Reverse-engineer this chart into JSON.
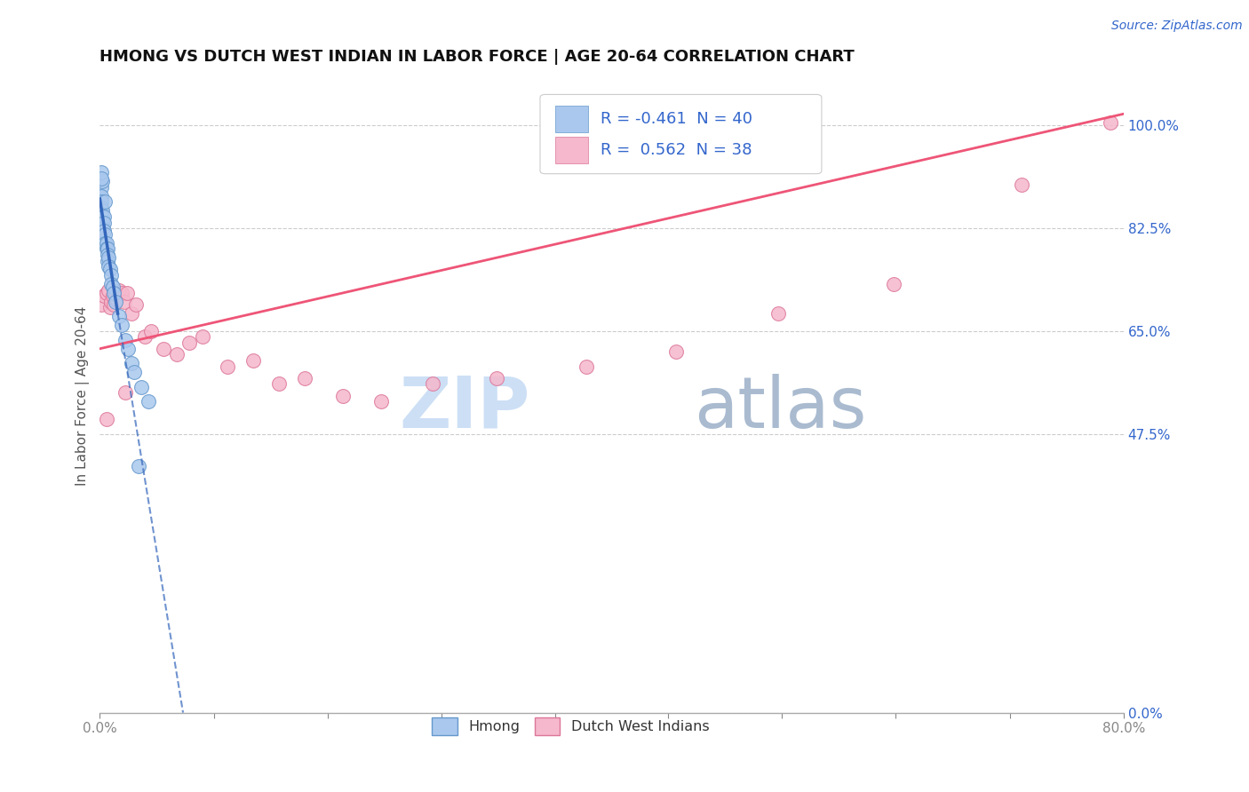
{
  "title": "HMONG VS DUTCH WEST INDIAN IN LABOR FORCE | AGE 20-64 CORRELATION CHART",
  "source_text": "Source: ZipAtlas.com",
  "ylabel": "In Labor Force | Age 20-64",
  "xlim": [
    0.0,
    0.8
  ],
  "ylim": [
    0.0,
    1.08
  ],
  "xtick_labels": [
    "0.0%",
    "",
    "",
    "",
    "",
    "",
    "",
    "",
    "",
    "80.0%"
  ],
  "xtick_positions": [
    0.0,
    0.089,
    0.178,
    0.267,
    0.356,
    0.444,
    0.533,
    0.622,
    0.711,
    0.8
  ],
  "ytick_labels": [
    "0.0%",
    "47.5%",
    "65.0%",
    "82.5%",
    "100.0%"
  ],
  "ytick_positions": [
    0.0,
    0.475,
    0.65,
    0.825,
    1.0
  ],
  "grid_color": "#cccccc",
  "background_color": "#ffffff",
  "hmong_color": "#aac8ee",
  "dutch_color": "#f5b8cc",
  "hmong_edge_color": "#6699cc",
  "dutch_edge_color": "#dd7799",
  "hmong_line_color": "#3366bb",
  "dutch_line_color": "#ee5577",
  "legend_R_hmong": "-0.461",
  "legend_N_hmong": "40",
  "legend_R_dutch": "0.562",
  "legend_N_dutch": "38",
  "hmong_x": [
    0.001,
    0.001,
    0.001,
    0.001,
    0.001,
    0.002,
    0.002,
    0.002,
    0.002,
    0.003,
    0.003,
    0.003,
    0.004,
    0.004,
    0.005,
    0.005,
    0.006,
    0.006,
    0.006,
    0.007,
    0.007,
    0.008,
    0.009,
    0.009,
    0.01,
    0.011,
    0.012,
    0.015,
    0.017,
    0.02,
    0.022,
    0.025,
    0.027,
    0.032,
    0.038,
    0.002,
    0.001,
    0.001,
    0.03,
    0.004
  ],
  "hmong_y": [
    0.895,
    0.88,
    0.87,
    0.86,
    0.85,
    0.855,
    0.845,
    0.835,
    0.825,
    0.845,
    0.835,
    0.82,
    0.815,
    0.8,
    0.8,
    0.79,
    0.79,
    0.78,
    0.77,
    0.775,
    0.76,
    0.755,
    0.745,
    0.73,
    0.725,
    0.715,
    0.7,
    0.675,
    0.66,
    0.635,
    0.62,
    0.595,
    0.58,
    0.555,
    0.53,
    0.905,
    0.92,
    0.91,
    0.42,
    0.87
  ],
  "dutch_x": [
    0.001,
    0.003,
    0.005,
    0.007,
    0.008,
    0.009,
    0.01,
    0.011,
    0.012,
    0.013,
    0.015,
    0.017,
    0.019,
    0.021,
    0.025,
    0.028,
    0.035,
    0.04,
    0.05,
    0.06,
    0.07,
    0.08,
    0.1,
    0.12,
    0.14,
    0.16,
    0.19,
    0.22,
    0.26,
    0.31,
    0.38,
    0.45,
    0.53,
    0.62,
    0.72,
    0.79,
    0.005,
    0.02
  ],
  "dutch_y": [
    0.695,
    0.71,
    0.715,
    0.72,
    0.69,
    0.7,
    0.71,
    0.695,
    0.715,
    0.705,
    0.72,
    0.715,
    0.7,
    0.715,
    0.68,
    0.695,
    0.64,
    0.65,
    0.62,
    0.61,
    0.63,
    0.64,
    0.59,
    0.6,
    0.56,
    0.57,
    0.54,
    0.53,
    0.56,
    0.57,
    0.59,
    0.615,
    0.68,
    0.73,
    0.9,
    1.005,
    0.5,
    0.545
  ],
  "title_fontsize": 13,
  "axis_label_fontsize": 11,
  "tick_fontsize": 11,
  "legend_fontsize": 13,
  "source_fontsize": 10,
  "watermark_zip_color": "#ccdff5",
  "watermark_atlas_color": "#aabbd0"
}
